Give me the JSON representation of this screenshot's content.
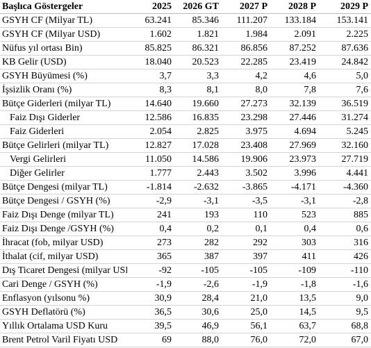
{
  "table": {
    "header": [
      "Başlıca Göstergeler",
      "2025",
      "2026 GT",
      "2027 P",
      "2028 P",
      "2029 P"
    ],
    "rows": [
      [
        "GSYH CF (Milyar TL)",
        "63.241",
        "85.346",
        "111.207",
        "133.184",
        "153.141"
      ],
      [
        "GSYH CF (Milyar USD)",
        "1.602",
        "1.821",
        "1.984",
        "2.091",
        "2.225"
      ],
      [
        "Nüfus yıl ortası Bin)",
        "85.825",
        "86.321",
        "86.856",
        "87.252",
        "87.636"
      ],
      [
        "KB Gelir (USD)",
        "18.040",
        "20.523",
        "22.285",
        "23.419",
        "24.842"
      ],
      [
        "GSYH Büyümesi (%)",
        "3,7",
        "3,3",
        "4,2",
        "4,6",
        "5,0"
      ],
      [
        "İşsizlik Oranı (%)",
        "8,3",
        "8,1",
        "8,0",
        "7,8",
        "7,6"
      ],
      [
        "Bütçe Giderleri (milyar TL)",
        "14.640",
        "19.660",
        "27.273",
        "32.139",
        "36.519"
      ],
      [
        "Faiz Dışı Giderler",
        "12.586",
        "16.835",
        "23.298",
        "27.446",
        "31.274"
      ],
      [
        "Faiz Giderleri",
        "2.054",
        "2.825",
        "3.975",
        "4.694",
        "5.245"
      ],
      [
        "Bütçe Gelirleri (milyar TL)",
        "12.827",
        "17.028",
        "23.408",
        "27.969",
        "32.160"
      ],
      [
        "Vergi Gelirleri",
        "11.050",
        "14.586",
        "19.906",
        "23.973",
        "27.719"
      ],
      [
        "Diğer Gelirler",
        "1.777",
        "2.443",
        "3.502",
        "3.996",
        "4.441"
      ],
      [
        "Bütçe Dengesi (milyar TL)",
        "-1.814",
        "-2.632",
        "-3.865",
        "-4.171",
        "-4.360"
      ],
      [
        "Bütçe Dengesi / GSYH (%)",
        "-2,9",
        "-3,1",
        "-3,5",
        "-3,1",
        "-2,8"
      ],
      [
        "Faiz Dışı Denge (milyar TL)",
        "241",
        "193",
        "110",
        "523",
        "885"
      ],
      [
        "Faiz Dışı Denge /GSYH (%)",
        "0,4",
        "0,2",
        "0,1",
        "0,4",
        "0,6"
      ],
      [
        "İhracat (fob, milyar USD)",
        "273",
        "282",
        "292",
        "303",
        "316"
      ],
      [
        "İthalat (cif, milyar USD)",
        "365",
        "387",
        "397",
        "411",
        "426"
      ],
      [
        "Dış Ticaret Dengesi (milyar USD)",
        "-92",
        "-105",
        "-105",
        "-109",
        "-110"
      ],
      [
        "Cari Denge / GSYH (%)",
        "-1,9",
        "-2,6",
        "-1,9",
        "-1,8",
        "-1,6"
      ],
      [
        "Enflasyon (yılsonu %)",
        "30,9",
        "28,4",
        "21,0",
        "13,5",
        "9,0"
      ],
      [
        "GSYH Deflatörü (%)",
        "36,5",
        "30,6",
        "25,0",
        "14,5",
        "9,5"
      ],
      [
        "Yıllık Ortalama USD Kuru",
        "39,5",
        "46,9",
        "56,1",
        "63,7",
        "68,8"
      ],
      [
        "Brent Petrol Varil Fiyatı USD",
        "69",
        "88,0",
        "76,0",
        "72,0",
        "67,0"
      ]
    ]
  }
}
